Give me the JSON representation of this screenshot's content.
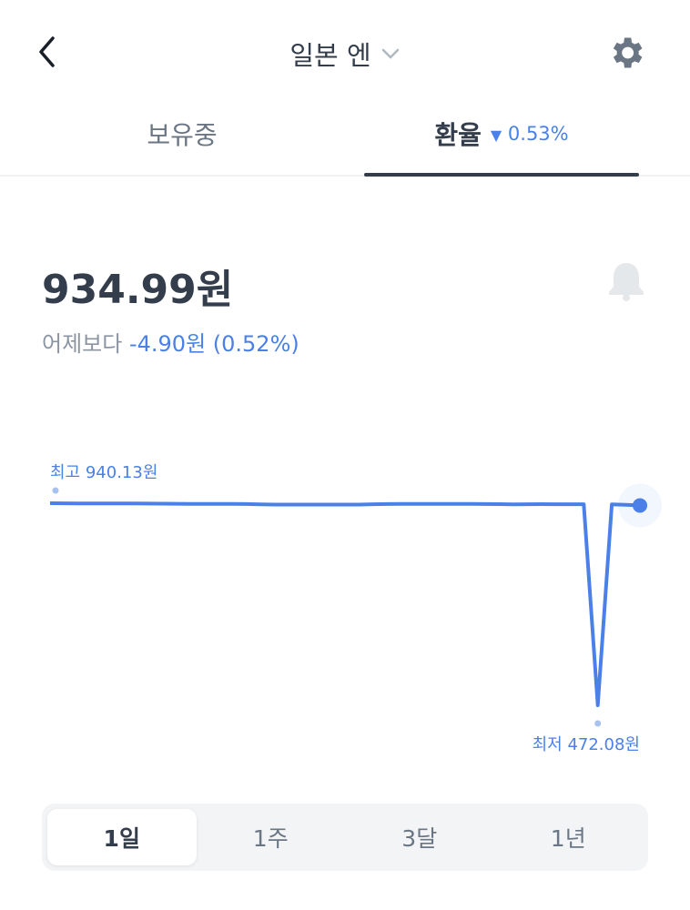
{
  "header": {
    "title": "일본 엔",
    "back_icon": "chevron-left-icon",
    "dropdown_icon": "chevron-down-icon",
    "settings_icon": "gear-icon"
  },
  "tabs": [
    {
      "label": "보유중",
      "selected": false
    },
    {
      "label": "환율",
      "selected": true,
      "change_arrow": "▼",
      "change": "0.53%"
    }
  ],
  "rate": {
    "price": "934.99원",
    "compare_label": "어제보다",
    "compare_value": "-4.90원 (0.52%)",
    "alert_icon": "bell-icon"
  },
  "colors": {
    "accent": "#4a80e8",
    "text": "#333d4b"
  },
  "chart_data": {
    "type": "line",
    "high_label": "최고 940.13원",
    "low_label": "최저 472.08원",
    "high": 940.13,
    "low": 472.08,
    "last": 934.99,
    "series": [
      {
        "values": [
          940.13,
          939.9,
          939.8,
          939.7,
          939.5,
          939.4,
          939.5,
          939.3,
          939.0,
          938.8,
          938.7,
          938.6,
          938.4,
          938.5,
          938.3,
          937.3,
          937.0,
          937.0,
          936.9,
          937.0,
          937.0,
          937.0,
          937.0,
          937.9,
          938.2,
          938.4,
          938.5,
          938.6,
          938.7,
          938.6,
          938.4,
          938.3,
          938.0,
          937.6,
          937.9,
          938.0,
          937.9,
          937.8,
          937.8,
          472.08,
          937.6,
          936.5,
          934.99
        ]
      }
    ]
  },
  "periods": [
    {
      "label": "1일",
      "selected": true
    },
    {
      "label": "1주",
      "selected": false
    },
    {
      "label": "3달",
      "selected": false
    },
    {
      "label": "1년",
      "selected": false
    }
  ]
}
